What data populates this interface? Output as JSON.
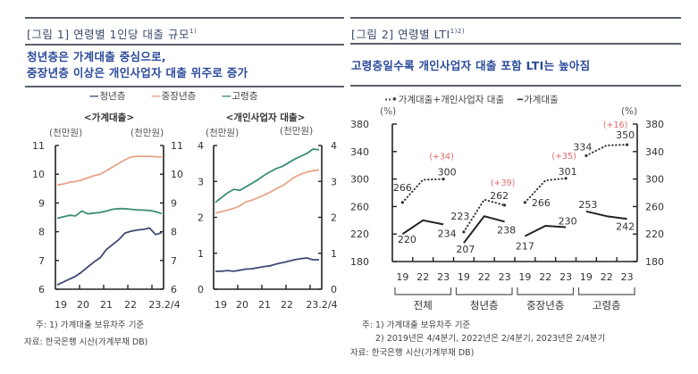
{
  "figure1": {
    "title": "[그림 1] 연령별 1인당 대출 규모",
    "title_sup": "1)",
    "subtitle_lines": [
      "청년층은 가계대출 중심으로,",
      "중장년층 이상은 개인사업자 대출 위주로 증가"
    ],
    "legend": [
      {
        "label": "청년층",
        "color": "#3f4a73"
      },
      {
        "label": "중장년층",
        "color": "#e8a488"
      },
      {
        "label": "고령층",
        "color": "#3c8c78"
      }
    ],
    "notes": [
      "주: 1) 가계대출 보유차주 기준",
      "자료: 한국은행 시산(가계부채 DB)"
    ]
  },
  "figure2": {
    "title": "[그림 2] 연령별 LTI",
    "title_sup": "1)2)",
    "subtitle": "고령층일수록 개인사업자 대출 포함 LTI는 높아짐",
    "legend": [
      {
        "glyph": "··•",
        "label": "가계대출+개인사업자 대출"
      },
      {
        "glyph": "━",
        "label": "가계대출"
      }
    ],
    "notes": [
      "주: 1) 가계대출 보유차주 기준",
      "2) 2019년은 4/4분기, 2022년은 2/4분기, 2023년은 2/4분기",
      "자료: 한국은행 시산(가계부채 DB)"
    ]
  },
  "chart_data": [
    {
      "type": "line",
      "title": "<가계대출>",
      "ylabel_left": "(천만원)",
      "ylabel_right": "(천만원)",
      "ylim": [
        6,
        11
      ],
      "yticks": [
        6,
        7,
        8,
        9,
        10,
        11
      ],
      "xtick_labels": [
        "19",
        "20",
        "21",
        "22",
        "23.2/4"
      ],
      "x": [
        "19.1Q",
        "19.2Q",
        "19.3Q",
        "19.4Q",
        "20.1Q",
        "20.2Q",
        "20.3Q",
        "20.4Q",
        "21.1Q",
        "21.2Q",
        "21.3Q",
        "21.4Q",
        "22.1Q",
        "22.2Q",
        "22.3Q",
        "22.4Q",
        "23.1Q",
        "23.2Q"
      ],
      "series": [
        {
          "name": "청년층",
          "color": "#3f4a73",
          "values": [
            6.15,
            6.25,
            6.35,
            6.45,
            6.6,
            6.78,
            6.95,
            7.1,
            7.38,
            7.55,
            7.72,
            7.95,
            8.02,
            8.06,
            8.08,
            8.13,
            7.9,
            7.97
          ]
        },
        {
          "name": "중장년층",
          "color": "#e8a488",
          "values": [
            9.62,
            9.66,
            9.72,
            9.75,
            9.8,
            9.88,
            9.95,
            10.0,
            10.12,
            10.25,
            10.38,
            10.5,
            10.6,
            10.62,
            10.62,
            10.62,
            10.61,
            10.6
          ]
        },
        {
          "name": "고령층",
          "color": "#3c8c78",
          "values": [
            8.47,
            8.52,
            8.57,
            8.55,
            8.72,
            8.62,
            8.65,
            8.67,
            8.72,
            8.78,
            8.8,
            8.8,
            8.78,
            8.76,
            8.75,
            8.74,
            8.7,
            8.63
          ]
        }
      ],
      "grid": false
    },
    {
      "type": "line",
      "title": "<개인사업자 대출>",
      "ylabel_left": "(천만원)",
      "ylabel_right": "(천만원)",
      "ylim": [
        0,
        4
      ],
      "yticks": [
        0,
        1,
        2,
        3,
        4
      ],
      "xtick_labels": [
        "19",
        "20",
        "21",
        "22",
        "23.2/4"
      ],
      "x": [
        "19.1Q",
        "19.2Q",
        "19.3Q",
        "19.4Q",
        "20.1Q",
        "20.2Q",
        "20.3Q",
        "20.4Q",
        "21.1Q",
        "21.2Q",
        "21.3Q",
        "21.4Q",
        "22.1Q",
        "22.2Q",
        "22.3Q",
        "22.4Q",
        "23.1Q",
        "23.2Q"
      ],
      "series": [
        {
          "name": "청년층",
          "color": "#3f4a73",
          "values": [
            0.5,
            0.5,
            0.52,
            0.5,
            0.53,
            0.56,
            0.57,
            0.6,
            0.63,
            0.65,
            0.7,
            0.74,
            0.78,
            0.82,
            0.85,
            0.87,
            0.82,
            0.82
          ]
        },
        {
          "name": "중장년층",
          "color": "#e8a488",
          "values": [
            2.12,
            2.16,
            2.2,
            2.25,
            2.32,
            2.43,
            2.48,
            2.55,
            2.62,
            2.7,
            2.8,
            2.88,
            3.0,
            3.12,
            3.2,
            3.26,
            3.3,
            3.32
          ]
        },
        {
          "name": "고령층",
          "color": "#3c8c78",
          "values": [
            2.42,
            2.55,
            2.68,
            2.78,
            2.75,
            2.85,
            2.95,
            3.05,
            3.17,
            3.27,
            3.36,
            3.42,
            3.52,
            3.62,
            3.7,
            3.78,
            3.9,
            3.88
          ]
        }
      ],
      "grid": false
    },
    {
      "type": "line",
      "title": "연령별 LTI",
      "ylabel_left": "(%)",
      "ylabel_right": "(%)",
      "ylim": [
        180,
        380
      ],
      "yticks": [
        180,
        220,
        260,
        300,
        340,
        380
      ],
      "groups": [
        "전체",
        "청년층",
        "중장년층",
        "고령층"
      ],
      "categories": [
        "19",
        "22",
        "23"
      ],
      "series": [
        {
          "name": "가계대출+개인사업자 대출",
          "style": "dotted",
          "values": [
            [
              266,
              299,
              300
            ],
            [
              223,
              270,
              262
            ],
            [
              266,
              298,
              301
            ],
            [
              334,
              349,
              350
            ]
          ]
        },
        {
          "name": "가계대출",
          "style": "solid",
          "values": [
            [
              220,
              240,
              234
            ],
            [
              207,
              246,
              238
            ],
            [
              217,
              232,
              230
            ],
            [
              253,
              246,
              242
            ]
          ]
        }
      ],
      "change_annotations": [
        "(+34)",
        "(+39)",
        "(+35)",
        "(+16)"
      ],
      "annotation_color": "#e06a6a",
      "grid": false
    }
  ]
}
